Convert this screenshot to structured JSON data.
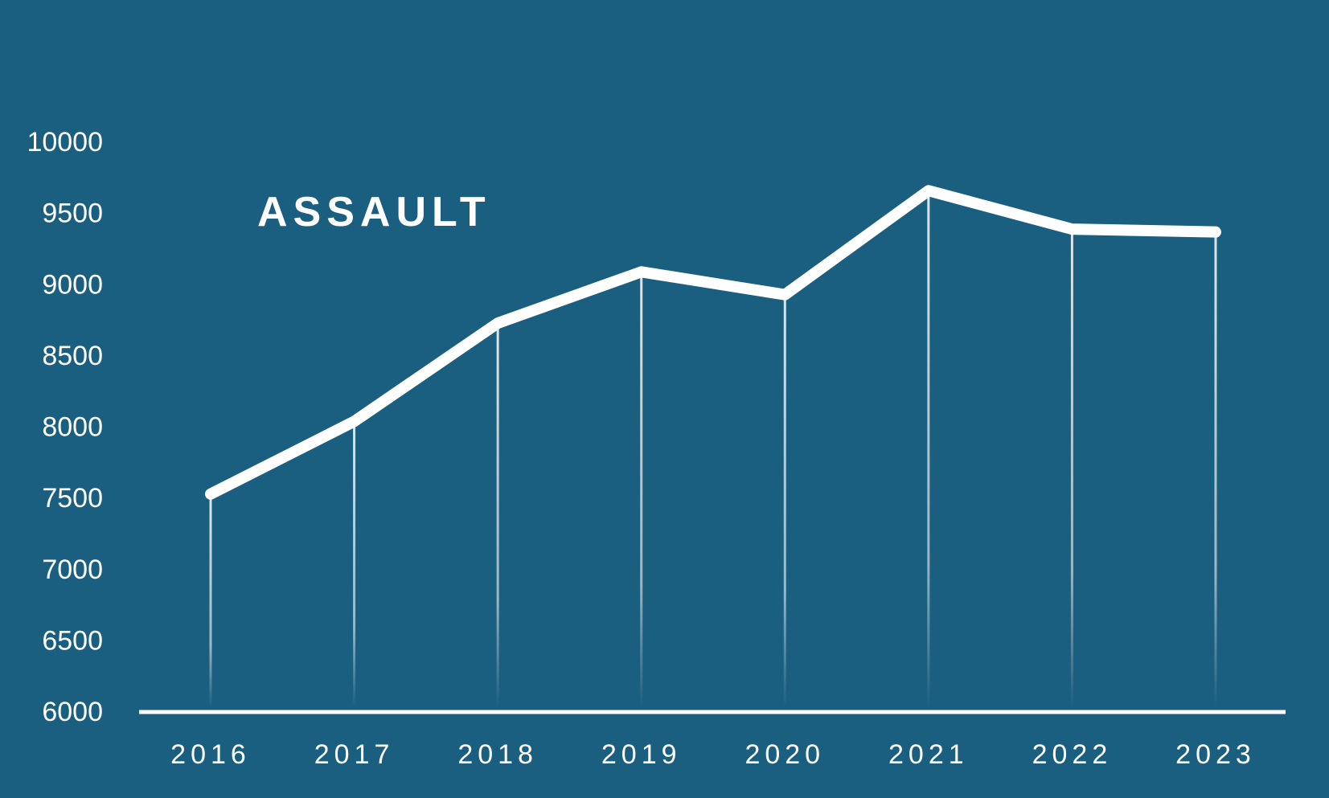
{
  "title": "ASSAULT",
  "colors": {
    "background": "#1a5f80",
    "line": "#ffffff",
    "text": "#ffffff",
    "axis": "#ffffff",
    "drop_line": "#ffffff"
  },
  "chart_data": {
    "type": "line",
    "title": "ASSAULT",
    "categories": [
      "2016",
      "2017",
      "2018",
      "2019",
      "2020",
      "2021",
      "2022",
      "2023"
    ],
    "series": [
      {
        "name": "ASSAULT",
        "values": [
          7530,
          8040,
          8730,
          9090,
          8930,
          9660,
          9390,
          9370
        ]
      }
    ],
    "xlabel": "",
    "ylabel": "",
    "ylim": [
      6000,
      10000
    ],
    "ytick_step": 500,
    "ytick_labels": [
      "6000",
      "6500",
      "7000",
      "7500",
      "8000",
      "8500",
      "9000",
      "9500",
      "10000"
    ],
    "grid": "off",
    "legend": "none",
    "annotations": "vertical drop lines from each point fading toward baseline"
  }
}
